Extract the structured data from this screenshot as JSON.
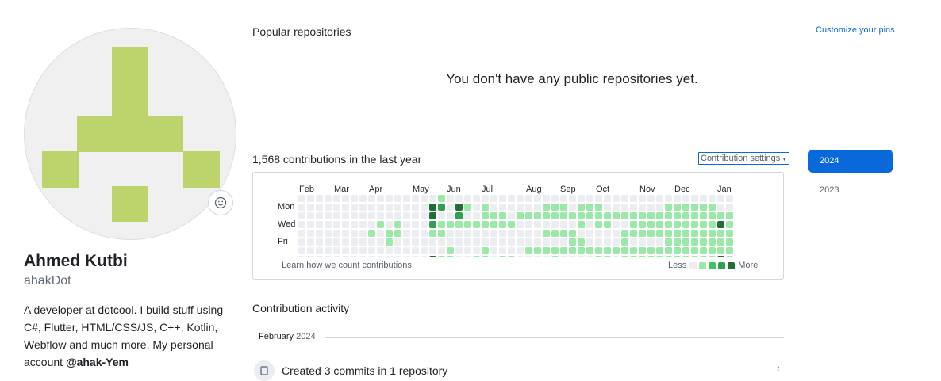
{
  "profile": {
    "full_name": "Ahmed Kutbi",
    "username": "ahakDot",
    "bio_text": "A developer at dotcool. I build stuff using C#, Flutter, HTML/CSS/JS, C++, Kotlin, Webflow and much more. My personal account ",
    "bio_handle": "@ahak-Yem",
    "avatar_color": "#bdd46d",
    "status_icon": "smiley-icon"
  },
  "popular": {
    "title": "Popular repositories",
    "customize_label": "Customize your pins",
    "empty_message": "You don't have any public repositories yet."
  },
  "contributions": {
    "count_label": "1,568 contributions in the last year",
    "settings_label": "Contribution settings",
    "months": [
      "Feb",
      "Mar",
      "Apr",
      "May",
      "Jun",
      "Jul",
      "Aug",
      "Sep",
      "Oct",
      "Nov",
      "Dec",
      "Jan"
    ],
    "day_labels": [
      "Mon",
      "Wed",
      "Fri"
    ],
    "learn_label": "Learn how we count contributions",
    "legend_less": "Less",
    "legend_more": "More",
    "colors": [
      "#ebedf0",
      "#9be9a8",
      "#40c463",
      "#30a14e",
      "#216e39"
    ],
    "grid_levels": [
      "00000000000000001000000000000000000000000000000000",
      "00000000000000043041010000001110111000000011111100",
      "00000000000000040030011101111111111111111111111111",
      "00000000010100031111111110000000101100111111111141",
      "00000000101100011000000000001111000001111111111111",
      "00000000001000000000000000000001100001000011111111",
      "00000000000000000100010000111111111111111111111111",
      "00000000000000041100110110000100001101111111111141"
    ]
  },
  "years": {
    "active": "2024",
    "other": "2023"
  },
  "activity": {
    "title": "Contribution activity",
    "month": "February",
    "year": "2024",
    "item": "Created 3 commits in 1 repository"
  }
}
